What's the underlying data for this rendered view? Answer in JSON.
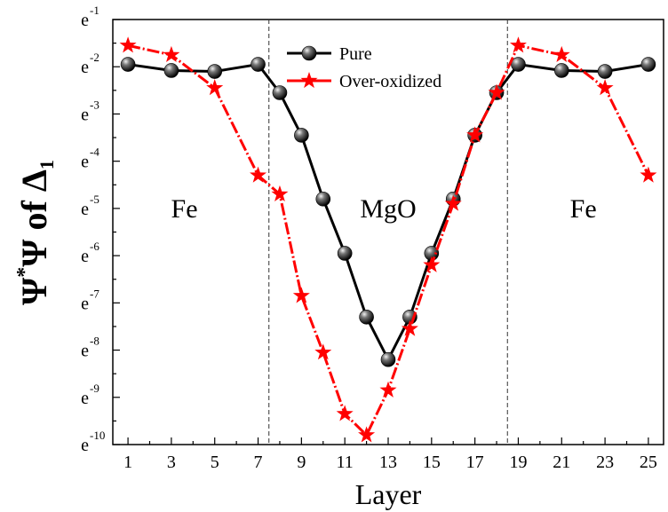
{
  "chart_data": {
    "type": "line",
    "xlabel": "Layer",
    "ylabel": {
      "main1": "Ψ",
      "sup": "*",
      "main2": "Ψ of Δ",
      "sub": "1"
    },
    "y_scale": "log_e",
    "ylim": [
      -10,
      -1
    ],
    "xlim": [
      0.3,
      25.7
    ],
    "x_ticks": [
      1,
      3,
      5,
      7,
      9,
      11,
      13,
      15,
      17,
      19,
      21,
      23,
      25
    ],
    "x_tick_labels": [
      "1",
      "3",
      "5",
      "7",
      "9",
      "11",
      "13",
      "15",
      "17",
      "19",
      "21",
      "23",
      "25"
    ],
    "y_ticks": [
      -1,
      -2,
      -3,
      -4,
      -5,
      -6,
      -7,
      -8,
      -9,
      -10
    ],
    "y_tick_base": "e",
    "y_tick_exponents": [
      "-1",
      "-2",
      "-3",
      "-4",
      "-5",
      "-6",
      "-7",
      "-8",
      "-9",
      "-10"
    ],
    "vlines": [
      7.5,
      18.5
    ],
    "region_labels": [
      {
        "text": "Fe",
        "x": 3.6,
        "y": -5
      },
      {
        "text": "MgO",
        "x": 13,
        "y": -5
      },
      {
        "text": "Fe",
        "x": 22,
        "y": -5
      }
    ],
    "legend_position": "top-center",
    "series": [
      {
        "name": "Pure",
        "color": "#000000",
        "marker": "sphere",
        "x": [
          1,
          3,
          5,
          7,
          8,
          9,
          10,
          11,
          12,
          13,
          14,
          15,
          16,
          17,
          18,
          19,
          21,
          23,
          25
        ],
        "values": [
          -1.95,
          -2.08,
          -2.1,
          -1.95,
          -2.55,
          -3.45,
          -4.8,
          -5.95,
          -7.3,
          -8.2,
          -7.3,
          -5.95,
          -4.8,
          -3.45,
          -2.55,
          -1.95,
          -2.08,
          -2.1,
          -1.95
        ]
      },
      {
        "name": "Over-oxidized",
        "color": "#ff0000",
        "marker": "star",
        "x": [
          1,
          3,
          5,
          7,
          8,
          9,
          10,
          11,
          12,
          13,
          14,
          15,
          16,
          17,
          18,
          19,
          21,
          23,
          25
        ],
        "values": [
          -1.55,
          -1.75,
          -2.45,
          -4.3,
          -4.7,
          -6.85,
          -8.05,
          -9.35,
          -9.8,
          -8.85,
          -7.55,
          -6.2,
          -4.9,
          -3.45,
          -2.55,
          -1.55,
          -1.75,
          -2.45,
          -4.3
        ]
      }
    ]
  }
}
